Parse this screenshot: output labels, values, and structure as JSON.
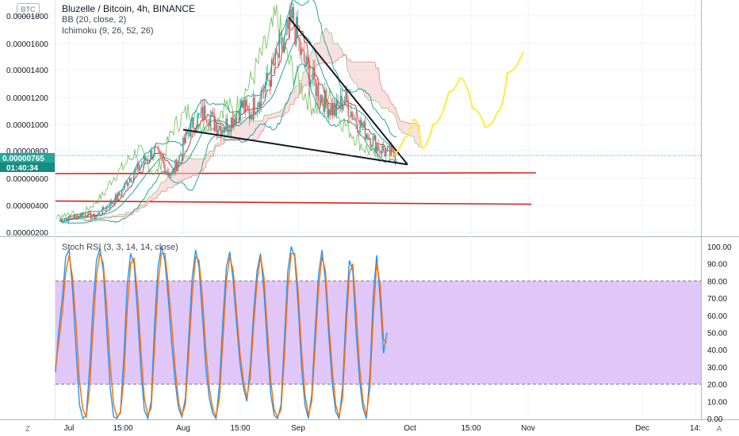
{
  "currency_button": "BTC",
  "legend": {
    "symbol": "Bluzelle / Bitcoin, 4h, BINANCE",
    "bb": "BB (20, close, 2)",
    "ichimoku": "Ichimoku (9, 26, 52, 26)",
    "stoch": "Stoch RSI (3, 3, 14, 14, close)"
  },
  "price_tag": {
    "price": "0.00000765",
    "countdown": "01:40:34"
  },
  "corner": {
    "left": "Z",
    "right": "A"
  },
  "colors": {
    "bb": "#26a69a",
    "ichi_green": "#7cc36a",
    "ichi_red": "#e05d5d",
    "candle_up": "#26a69a",
    "candle_down": "#ef5350",
    "support": "#e0201c",
    "forecast": "#ffeb3b",
    "stoch_k": "#2196f3",
    "stoch_d": "#ff6d00",
    "band_fill": "#e1c6f8",
    "price_tag": "#26a69a"
  },
  "chart_data": [
    {
      "type": "line",
      "subtype": "candlestick",
      "pane": "price",
      "ylim": [
        1.8e-06,
        1.9e-05
      ],
      "y_ticks": [
        "0.00001800",
        "0.00001600",
        "0.00001400",
        "0.00001200",
        "0.00001000",
        "0.00000800",
        "0.00000600",
        "0.00000400",
        "0.00000200"
      ],
      "x_tick_labels": [
        "Jul",
        "15:00",
        "Aug",
        "15:00",
        "Sep",
        "Oct",
        "15:00",
        "Nov",
        "Dec",
        "14:"
      ],
      "last_price": 7.65e-06,
      "series": [
        {
          "name": "BB (20, close, 2)",
          "values": []
        },
        {
          "name": "Ichimoku (9, 26, 52, 26)",
          "values": []
        }
      ],
      "anchor_prices": [
        2.9e-06,
        3e-06,
        3.2e-06,
        3.4e-06,
        3.1e-06,
        3.6e-06,
        4.2e-06,
        4.8e-06,
        6e-06,
        6.6e-06,
        7.4e-06,
        8e-06,
        7e-06,
        6.2e-06,
        7.8e-06,
        9.6e-06,
        1.04e-05,
        1.1e-05,
        1e-05,
        9.8e-06,
        1.04e-05,
        1.14e-05,
        1.08e-05,
        1.2e-05,
        1.3e-05,
        1.46e-05,
        1.6e-05,
        1.78e-05,
        1.5e-05,
        1.36e-05,
        1.24e-05,
        1.14e-05,
        1.1e-05,
        1.2e-05,
        1.06e-05,
        9.8e-06,
        9e-06,
        8.2e-06,
        7.8e-06,
        7.6e-06
      ],
      "trendlines": [
        {
          "name": "upper",
          "from": [
            1.79e-05
          ],
          "to": [
            7e-06
          ]
        },
        {
          "name": "lower",
          "from": [
            9.6e-06
          ],
          "to": [
            7e-06
          ]
        }
      ],
      "support_levels": [
        6.4e-06,
        4.2e-06
      ],
      "forecast": [
        7.6e-06,
        9e-06,
        1.04e-05,
        8.2e-06,
        1e-05,
        1.24e-05,
        1.34e-05,
        1.12e-05,
        9.8e-06,
        1.1e-05,
        1.38e-05,
        1.54e-05
      ]
    },
    {
      "type": "line",
      "pane": "oscillator",
      "title": "Stoch RSI (3, 3, 14, 14, close)",
      "ylim": [
        0,
        100
      ],
      "y_ticks": [
        "100.00",
        "90.00",
        "80.00",
        "70.00",
        "60.00",
        "50.00",
        "40.00",
        "30.00",
        "20.00",
        "10.00",
        "0.00"
      ],
      "bands": [
        80,
        20
      ],
      "series": [
        {
          "name": "K",
          "values": [
            27,
            52,
            70,
            94,
            98,
            75,
            40,
            8,
            0,
            2,
            30,
            66,
            92,
            99,
            86,
            52,
            18,
            1,
            0,
            4,
            36,
            78,
            96,
            90,
            62,
            28,
            5,
            0,
            10,
            55,
            88,
            100,
            92,
            70,
            44,
            22,
            6,
            1,
            12,
            48,
            82,
            98,
            88,
            60,
            30,
            12,
            3,
            0,
            20,
            58,
            88,
            97,
            80,
            55,
            32,
            18,
            10,
            30,
            62,
            86,
            96,
            74,
            42,
            14,
            2,
            0,
            8,
            46,
            86,
            100,
            94,
            66,
            30,
            8,
            0,
            14,
            52,
            84,
            98,
            80,
            48,
            20,
            4,
            0,
            18,
            60,
            92,
            86,
            50,
            22,
            6,
            0,
            26,
            72,
            95,
            70,
            38,
            50
          ]
        },
        {
          "name": "D",
          "values": [
            30,
            45,
            62,
            85,
            95,
            82,
            55,
            22,
            5,
            1,
            18,
            52,
            83,
            96,
            90,
            65,
            32,
            8,
            1,
            3,
            24,
            64,
            90,
            93,
            72,
            40,
            12,
            2,
            6,
            42,
            78,
            96,
            96,
            78,
            55,
            30,
            10,
            2,
            8,
            38,
            72,
            94,
            92,
            70,
            40,
            18,
            6,
            1,
            12,
            46,
            80,
            94,
            86,
            62,
            38,
            22,
            12,
            24,
            54,
            80,
            94,
            82,
            52,
            22,
            5,
            1,
            5,
            36,
            76,
            96,
            96,
            74,
            40,
            14,
            2,
            10,
            42,
            76,
            94,
            86,
            56,
            28,
            8,
            1,
            12,
            50,
            84,
            90,
            62,
            30,
            10,
            2,
            18,
            60,
            90,
            78,
            46,
            44
          ]
        }
      ]
    }
  ]
}
